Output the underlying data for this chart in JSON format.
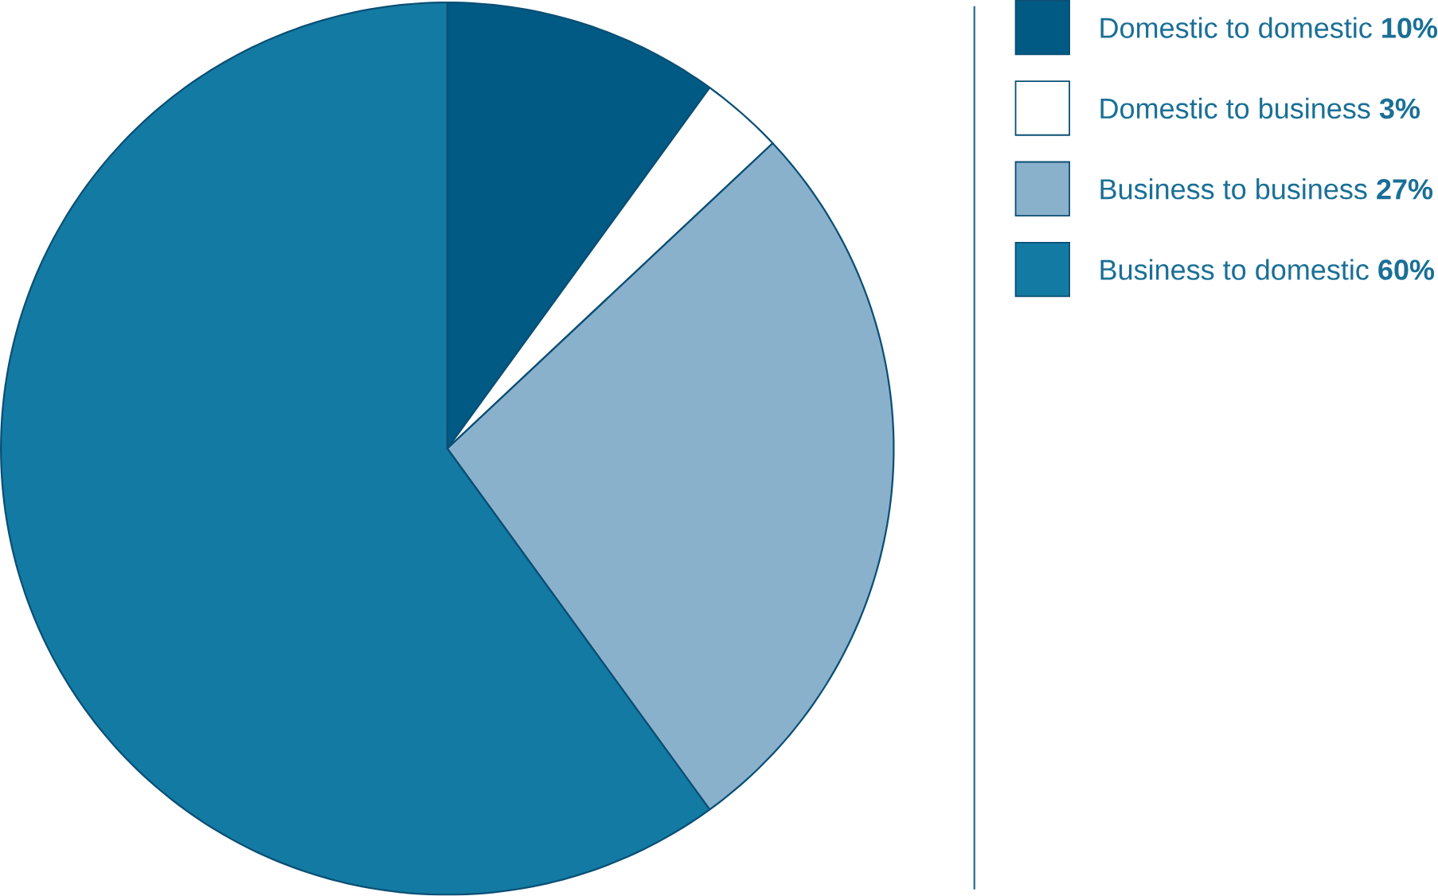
{
  "chart_data": {
    "type": "pie",
    "categories": [
      "Domestic to domestic",
      "Domestic to business",
      "Business to business",
      "Business to domestic"
    ],
    "values": [
      10,
      3,
      27,
      60
    ],
    "value_labels": [
      "10%",
      "3%",
      "27%",
      "60%"
    ],
    "colors": [
      "#005a84",
      "#ffffff",
      "#8ab1cc",
      "#137ba3"
    ],
    "legend": "right"
  }
}
